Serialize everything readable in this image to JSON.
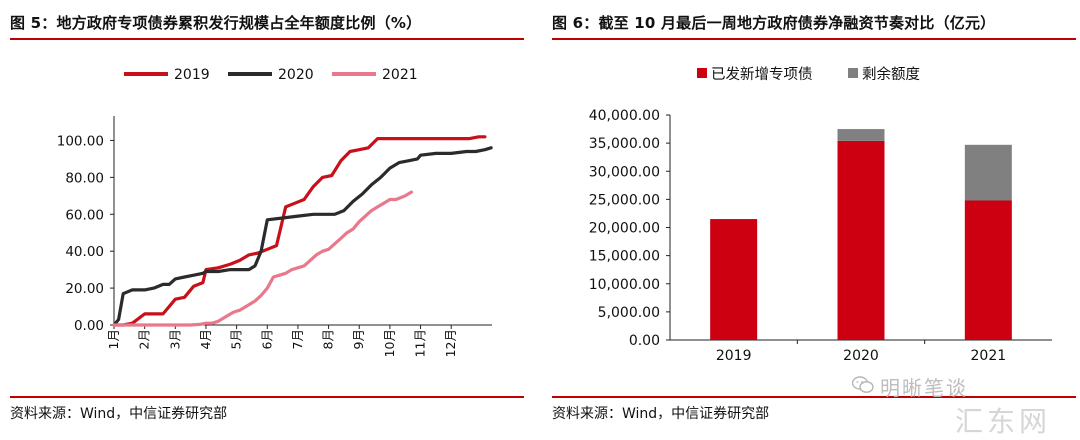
{
  "left_panel": {
    "title": "图 5：地方政府专项债券累积发行规模占全年额度比例（%）",
    "source": "资料来源：Wind，中信证券研究部"
  },
  "right_panel": {
    "title": "图 6：截至 10 月最后一周地方政府债券净融资节奏对比（亿元）",
    "source": "资料来源：Wind，中信证券研究部"
  },
  "watermark": {
    "account": "明晰笔谈",
    "site": "汇东网"
  },
  "colors": {
    "s2019": "#c8101a",
    "s2020": "#2b2b2b",
    "s2021": "#e9788c",
    "bar_issued": "#cc0010",
    "bar_remaining": "#808080",
    "rule": "#c00000"
  },
  "chart_data": [
    {
      "type": "line",
      "title": "",
      "xlabel": "",
      "ylabel": "",
      "x_tick_labels": [
        "1月",
        "2月",
        "3月",
        "4月",
        "5月",
        "6月",
        "7月",
        "8月",
        "9月",
        "10月",
        "11月",
        "12月"
      ],
      "y_tick_labels": [
        "0.00",
        "20.00",
        "40.00",
        "60.00",
        "80.00",
        "100.00"
      ],
      "ylim": [
        0,
        110
      ],
      "xlim": [
        1,
        13.2
      ],
      "legend_position": "top",
      "grid": false,
      "series": [
        {
          "name": "2019",
          "x": [
            1,
            1.3,
            1.6,
            2,
            2.3,
            2.6,
            2.8,
            3,
            3.3,
            3.6,
            3.9,
            4,
            4.4,
            4.8,
            5.1,
            5.4,
            5.7,
            6,
            6.3,
            6.6,
            6.9,
            7.2,
            7.5,
            7.8,
            8.1,
            8.4,
            8.7,
            9,
            9.3,
            9.6,
            9.9,
            10.2,
            10.5,
            10.8,
            11.1,
            11.4,
            11.7,
            12,
            12.3,
            12.6,
            12.9,
            13.1
          ],
          "y": [
            0,
            0,
            1,
            6,
            6,
            6,
            10,
            14,
            15,
            21,
            23,
            30,
            31,
            33,
            35,
            38,
            39,
            41,
            43,
            64,
            66,
            68,
            75,
            80,
            81,
            89,
            94,
            95,
            96,
            101,
            101,
            101,
            101,
            101,
            101,
            101,
            101,
            101,
            101,
            101,
            102,
            102
          ]
        },
        {
          "name": "2020",
          "x": [
            1,
            1.15,
            1.3,
            1.6,
            2,
            2.3,
            2.6,
            2.8,
            3,
            3.3,
            3.6,
            3.9,
            4,
            4.4,
            4.8,
            5.1,
            5.4,
            5.6,
            5.8,
            6,
            6.5,
            7,
            7.5,
            8,
            8.2,
            8.5,
            8.8,
            9.1,
            9.4,
            9.7,
            10,
            10.3,
            10.6,
            10.9,
            11,
            11.5,
            12,
            12.5,
            12.8,
            13.1,
            13.3
          ],
          "y": [
            0,
            3,
            17,
            19,
            19,
            20,
            22,
            22,
            25,
            26,
            27,
            28,
            29,
            29,
            30,
            30,
            30,
            32,
            40,
            57,
            58,
            59,
            60,
            60,
            60,
            62,
            67,
            71,
            76,
            80,
            85,
            88,
            89,
            90,
            92,
            93,
            93,
            94,
            94,
            95,
            96
          ]
        },
        {
          "name": "2021",
          "x": [
            1,
            1.5,
            2,
            2.5,
            3,
            3.5,
            3.8,
            4,
            4.2,
            4.4,
            4.7,
            4.9,
            5.1,
            5.4,
            5.6,
            5.8,
            6,
            6.2,
            6.4,
            6.6,
            6.8,
            7,
            7.2,
            7.4,
            7.6,
            7.8,
            8,
            8.2,
            8.4,
            8.6,
            8.8,
            9,
            9.2,
            9.4,
            9.6,
            9.8,
            10,
            10.2,
            10.5,
            10.7
          ],
          "y": [
            0,
            0,
            0,
            0,
            0,
            0,
            0.3,
            1,
            1,
            2,
            5,
            7,
            8,
            11,
            13,
            16,
            20,
            26,
            27,
            28,
            30,
            31,
            32,
            35,
            38,
            40,
            41,
            44,
            47,
            50,
            52,
            56,
            59,
            62,
            64,
            66,
            68,
            68,
            70,
            72
          ]
        }
      ]
    },
    {
      "type": "bar",
      "title": "",
      "xlabel": "",
      "ylabel": "",
      "stacked": true,
      "categories": [
        "2019",
        "2020",
        "2021"
      ],
      "y_tick_labels": [
        "0.00",
        "5,000.00",
        "10,000.00",
        "15,000.00",
        "20,000.00",
        "25,000.00",
        "30,000.00",
        "35,000.00",
        "40,000.00"
      ],
      "ylim": [
        0,
        40000
      ],
      "legend_position": "top",
      "grid": false,
      "series": [
        {
          "name": "已发新增专项债",
          "values": [
            21500,
            35400,
            24800
          ]
        },
        {
          "name": "剩余额度",
          "values": [
            0,
            2100,
            9900
          ]
        }
      ]
    }
  ]
}
